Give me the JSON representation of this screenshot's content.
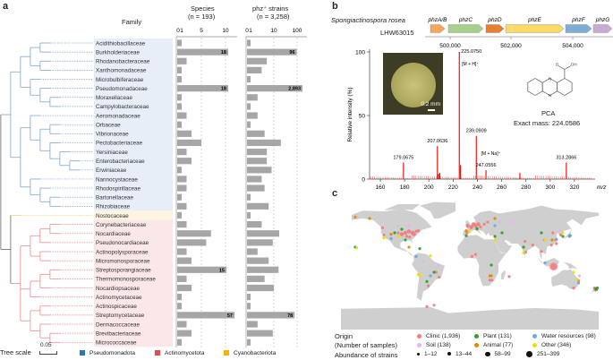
{
  "panels": {
    "a": "a",
    "b": "b",
    "c": "c"
  },
  "panel_a": {
    "family_header": "Family",
    "species_header": "Species",
    "species_n": "(n = 193)",
    "strains_header": "phz⁺ strains",
    "strains_n": "(n = 3,258)",
    "tree_scale_label": "Tree scale",
    "tree_scale_value": "0.05",
    "legend": [
      {
        "label": "Pseudomonadota",
        "color": "#2e75b6"
      },
      {
        "label": "Actinomycetota",
        "color": "#e84a4a"
      },
      {
        "label": "Cyanobacteriota",
        "color": "#f4b400"
      }
    ]
  },
  "panel_b": {
    "species": "Spongiactinospora rosea",
    "strain": "LHW63015",
    "genes": [
      {
        "name": "phzA/B",
        "color": "#f7a65a"
      },
      {
        "name": "phzC",
        "color": "#a8d08d"
      },
      {
        "name": "phzD",
        "color": "#e97f2e"
      },
      {
        "name": "phzE",
        "color": "#ffd966"
      },
      {
        "name": "phzF",
        "color": "#7eaed3"
      },
      {
        "name": "phzG",
        "color": "#c9a9d6"
      }
    ],
    "coord_ticks": [
      "500,000",
      "502,000",
      "504,000"
    ],
    "inset_scale": "0.2 mm",
    "compound": "PCA",
    "exact_mass": "Exact mass: 224.0586",
    "atom_O": "O",
    "atom_OH": "OH",
    "atom_N": "N",
    "mh_label": "[M + H]⁺",
    "mna_label": "[M + Na]⁺"
  },
  "panel_c": {
    "origin_label": "Origin",
    "samples_label": "(Number of samples)",
    "abundance_label": "Abundance of strains",
    "categories": [
      {
        "key": "clinic",
        "label": "Clinic (1,936)",
        "color": "#f47c7c"
      },
      {
        "key": "plant",
        "label": "Plant (131)",
        "color": "#2ca02c"
      },
      {
        "key": "water",
        "label": "Water resources (98)",
        "color": "#6fa8dc"
      },
      {
        "key": "soil",
        "label": "Soil (138)",
        "color": "#e3b5f2"
      },
      {
        "key": "animal",
        "label": "Animal (77)",
        "color": "#e08a00"
      },
      {
        "key": "other",
        "label": "Other (346)",
        "color": "#e8e000"
      }
    ],
    "abundance_bins": [
      "1–12",
      "13–44",
      "58–99",
      "251–399"
    ]
  },
  "chart_data": [
    {
      "type": "bar",
      "title": "Species (n = 193)",
      "orientation": "horizontal",
      "categories": [
        "Acidithiobacillaceae",
        "Burkholderiaceae",
        "Rhodanobacteraceae",
        "Xanthomonadaceae",
        "Microbulbiferaceae",
        "Pseudomonadaceae",
        "Moraxellaceae",
        "Campylobacteraceae",
        "Aeromonadaceae",
        "Orbaceae",
        "Vibrionaceae",
        "Pectobacteriaceae",
        "Yersiniaceae",
        "Enterobacteriaceae",
        "Erwiniaceae",
        "Nannocystaceae",
        "Rhodospirillaceae",
        "Bartonellaceae",
        "Rhizobiaceae",
        "Nostocaceae",
        "Corynebacteriaceae",
        "Nocardiaceae",
        "Pseudonocardiaceae",
        "Actinopolysporaceae",
        "Micromonosporaceae",
        "Streptosporangiaceae",
        "Thermomonosporaceae",
        "Nocardiopsaceae",
        "Actinomycetaceae",
        "Actinospicaceae",
        "Streptomycetaceae",
        "Dermacoccaceae",
        "Brevibacteriaceae",
        "Micrococcaceae"
      ],
      "phylum": [
        "P",
        "P",
        "P",
        "P",
        "P",
        "P",
        "P",
        "P",
        "P",
        "P",
        "P",
        "P",
        "P",
        "P",
        "P",
        "P",
        "P",
        "P",
        "P",
        "C",
        "A",
        "A",
        "A",
        "A",
        "A",
        "A",
        "A",
        "A",
        "A",
        "A",
        "A",
        "A",
        "A",
        "A"
      ],
      "values": [
        1,
        18,
        2,
        1,
        1,
        18,
        1,
        1,
        2,
        1,
        3,
        5,
        2,
        3,
        1,
        2,
        2,
        1,
        2,
        1,
        2,
        7,
        6,
        2,
        3,
        15,
        2,
        3,
        1,
        1,
        57,
        2,
        3,
        1
      ],
      "labeled_values": {
        "Burkholderiaceae": "18",
        "Pseudomonadaceae": "18",
        "Streptosporangiaceae": "15",
        "Streptomycetaceae": "57"
      },
      "xticks": [
        "0",
        "1",
        "5",
        "10"
      ]
    },
    {
      "type": "bar",
      "title": "phz⁺ strains (n = 3,258)",
      "orientation": "horizontal",
      "values": [
        1,
        96,
        5,
        3,
        1,
        2893,
        2,
        1,
        2,
        1,
        4,
        20,
        5,
        5,
        8,
        3,
        4,
        1,
        6,
        1,
        3,
        17,
        9,
        2,
        6,
        16,
        4,
        10,
        1,
        1,
        78,
        2,
        9,
        1
      ],
      "labeled_values": {
        "Burkholderiaceae": "96",
        "Pseudomonadaceae": "2,893",
        "Streptomycetaceae": "78"
      },
      "xticks": [
        "0",
        "1",
        "10",
        "100"
      ],
      "scale": "log"
    },
    {
      "type": "bar",
      "title": "LC-MS spectrum",
      "xlabel": "m/z",
      "ylabel": "Relative intensity (%)",
      "xlim": [
        150,
        336
      ],
      "ylim": [
        0,
        100
      ],
      "xticks": [
        "160",
        "180",
        "200",
        "220",
        "240",
        "260",
        "280",
        "300",
        "320"
      ],
      "yticks": [
        "0",
        "50",
        "100"
      ],
      "peaks": [
        {
          "mz": 179.0675,
          "intensity": 13,
          "label": "179.0675"
        },
        {
          "mz": 207.0636,
          "intensity": 26,
          "label": "207.0636"
        },
        {
          "mz": 208.0,
          "intensity": 4
        },
        {
          "mz": 209.0,
          "intensity": 5
        },
        {
          "mz": 225.075,
          "intensity": 100,
          "label": "225.0750"
        },
        {
          "mz": 226.08,
          "intensity": 11
        },
        {
          "mz": 239.0909,
          "intensity": 34,
          "label": "239.0909"
        },
        {
          "mz": 247.0556,
          "intensity": 7,
          "label": "247.0556"
        },
        {
          "mz": 275.0,
          "intensity": 5
        },
        {
          "mz": 313.2866,
          "intensity": 13,
          "label": "313.2866"
        }
      ]
    },
    {
      "type": "scatter",
      "title": "Geographic distribution of phz⁺ strains",
      "points": [
        [
          -90,
          40,
          "clinic",
          2
        ],
        [
          -85,
          42,
          "clinic",
          2
        ],
        [
          -80,
          40,
          "clinic",
          2
        ],
        [
          -75,
          42,
          "clinic",
          1
        ],
        [
          -95,
          38,
          "clinic",
          2
        ],
        [
          -88,
          35,
          "clinic",
          1
        ],
        [
          -100,
          40,
          "clinic",
          1
        ],
        [
          -120,
          37,
          "clinic",
          1
        ],
        [
          -122,
          47,
          "clinic",
          1
        ],
        [
          -78,
          38,
          "clinic",
          2
        ],
        [
          -84,
          34,
          "clinic",
          1
        ],
        [
          -72,
          43,
          "clinic",
          1
        ],
        [
          -3,
          50,
          "clinic",
          2
        ],
        [
          2,
          48,
          "clinic",
          2
        ],
        [
          8,
          50,
          "clinic",
          2
        ],
        [
          12,
          52,
          "clinic",
          2
        ],
        [
          5,
          52,
          "clinic",
          2
        ],
        [
          15,
          48,
          "clinic",
          1
        ],
        [
          20,
          52,
          "clinic",
          1
        ],
        [
          10,
          45,
          "clinic",
          1
        ],
        [
          -4,
          40,
          "clinic",
          1
        ],
        [
          25,
          55,
          "clinic",
          1
        ],
        [
          120,
          30,
          "clinic",
          1
        ],
        [
          116,
          40,
          "clinic",
          1
        ],
        [
          127,
          37,
          "clinic",
          1
        ],
        [
          114,
          23,
          "clinic",
          1
        ],
        [
          104,
          30,
          "clinic",
          1
        ],
        [
          77,
          28,
          "clinic",
          1
        ],
        [
          78,
          13,
          "clinic",
          1
        ],
        [
          88,
          23,
          "clinic",
          1
        ],
        [
          100,
          14,
          "clinic",
          1
        ],
        [
          121,
          25,
          "clinic",
          1
        ],
        [
          -43,
          -22,
          "clinic",
          1
        ],
        [
          -47,
          -15,
          "clinic",
          1
        ],
        [
          -58,
          -34,
          "clinic",
          1
        ],
        [
          31,
          -26,
          "clinic",
          1
        ],
        [
          28,
          -26,
          "clinic",
          1
        ],
        [
          3,
          7,
          "clinic",
          1
        ],
        [
          8,
          10,
          "clinic",
          1
        ],
        [
          152,
          -27,
          "clinic",
          1
        ],
        [
          145,
          -37,
          "clinic",
          1
        ],
        [
          175,
          -40,
          "clinic",
          1
        ],
        [
          174,
          -37,
          "clinic",
          1
        ],
        [
          55,
          -21,
          "clinic",
          1
        ],
        [
          -60,
          -63,
          "clinic",
          1
        ],
        [
          -50,
          -61,
          "clinic",
          1
        ],
        [
          117,
          -7,
          "clinic",
          4
        ],
        [
          -95,
          45,
          "plant",
          1
        ],
        [
          -105,
          40,
          "plant",
          1
        ],
        [
          -90,
          30,
          "plant",
          1
        ],
        [
          -60,
          -28,
          "plant",
          1
        ],
        [
          -50,
          -15,
          "plant",
          1
        ],
        [
          -160,
          20,
          "plant",
          1
        ],
        [
          30,
          -5,
          "plant",
          1
        ],
        [
          10,
          46,
          "plant",
          1
        ],
        [
          35,
          35,
          "plant",
          1
        ],
        [
          45,
          40,
          "plant",
          1
        ],
        [
          100,
          40,
          "plant",
          1
        ],
        [
          130,
          35,
          "plant",
          1
        ],
        [
          140,
          36,
          "plant",
          1
        ],
        [
          75,
          20,
          "plant",
          1
        ],
        [
          176,
          -38,
          "plant",
          1
        ],
        [
          178,
          -37,
          "plant",
          1
        ],
        [
          177,
          -39,
          "plant",
          1
        ],
        [
          -70,
          18,
          "plant",
          1
        ],
        [
          -5,
          36,
          "plant",
          1
        ],
        [
          -110,
          32,
          "water",
          1
        ],
        [
          -75,
          7,
          "water",
          1
        ],
        [
          -55,
          -20,
          "water",
          1
        ],
        [
          35,
          50,
          "water",
          1
        ],
        [
          105,
          -2,
          "water",
          1
        ],
        [
          152,
          -30,
          "water",
          1
        ],
        [
          139,
          35,
          "water",
          1
        ],
        [
          121,
          31,
          "water",
          1
        ],
        [
          -100,
          50,
          "soil",
          1
        ],
        [
          -85,
          50,
          "soil",
          1
        ],
        [
          60,
          55,
          "soil",
          1
        ],
        [
          42,
          55,
          "soil",
          1
        ],
        [
          125,
          42,
          "soil",
          1
        ],
        [
          153,
          -20,
          "soil",
          1
        ],
        [
          140,
          -8,
          "soil",
          1
        ],
        [
          -65,
          0,
          "soil",
          1
        ],
        [
          -45,
          -5,
          "soil",
          1
        ],
        [
          -140,
          60,
          "animal",
          1
        ],
        [
          -160,
          62,
          "animal",
          1
        ],
        [
          -110,
          38,
          "animal",
          1
        ],
        [
          -85,
          20,
          "animal",
          1
        ],
        [
          -5,
          43,
          "animal",
          1
        ],
        [
          28,
          -20,
          "animal",
          1
        ],
        [
          30,
          -20,
          "animal",
          1
        ],
        [
          35,
          60,
          "animal",
          1
        ],
        [
          115,
          30,
          "animal",
          1
        ],
        [
          -100,
          35,
          "other",
          1
        ],
        [
          -120,
          33,
          "other",
          1
        ],
        [
          -70,
          -20,
          "other",
          1
        ],
        [
          -72,
          -18,
          "other",
          1
        ],
        [
          -158,
          19,
          "other",
          1
        ],
        [
          145,
          -15,
          "other",
          1
        ],
        [
          150,
          -25,
          "other",
          1
        ],
        [
          0,
          42,
          "other",
          1
        ],
        [
          35,
          30,
          "other",
          1
        ],
        [
          105,
          30,
          "other",
          1
        ],
        [
          130,
          40,
          "other",
          1
        ],
        [
          75,
          12,
          "other",
          1
        ],
        [
          -55,
          8,
          "other",
          1
        ]
      ],
      "point_format": [
        "longitude",
        "latitude",
        "origin",
        "abundance_bin"
      ]
    }
  ]
}
